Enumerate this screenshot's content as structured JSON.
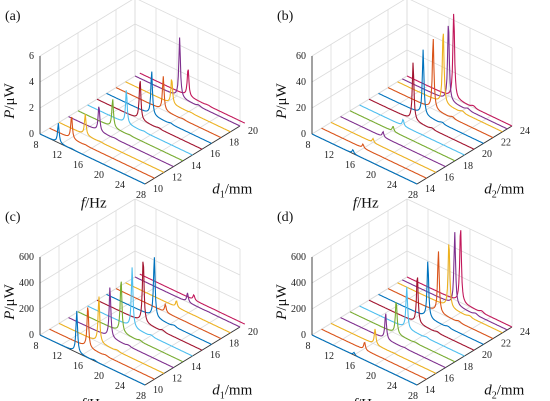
{
  "figure": {
    "panels": [
      "(a)",
      "(b)",
      "(c)",
      "(d)"
    ]
  },
  "colors": [
    "#0072bd",
    "#d95319",
    "#edb120",
    "#7e2f8e",
    "#77ac30",
    "#4dbeee",
    "#a2142f",
    "#0072bd",
    "#d95319",
    "#edb120",
    "#7e2f8e",
    "#c2185b"
  ],
  "chart_data": [
    {
      "label": "(a)",
      "type": "line",
      "xlabel": "f/Hz",
      "ylabel_var": "d",
      "ylabel_sub": "1",
      "ylabel_unit": "/mm",
      "zlabel_var": "P",
      "zlabel_unit": "/μW",
      "xticks": [
        "8",
        "12",
        "16",
        "20",
        "24",
        "28"
      ],
      "yticks": [
        "10",
        "12",
        "14",
        "16",
        "18",
        "20"
      ],
      "zticks": [
        "0",
        "2",
        "4",
        "6"
      ],
      "xlim": [
        8,
        28
      ],
      "ylim": [
        10,
        20
      ],
      "zlim": [
        0,
        6
      ],
      "series": [
        {
          "d": 10,
          "peak_f": 11.5,
          "peak_P": 1.5
        },
        {
          "d": 11,
          "peak_f": 12.2,
          "peak_P": 1.8
        },
        {
          "d": 12,
          "peak_f": 13.0,
          "peak_P": 1.6
        },
        {
          "d": 13,
          "peak_f": 13.8,
          "peak_P": 2.0
        },
        {
          "d": 14,
          "peak_f": 14.6,
          "peak_P": 2.2
        },
        {
          "d": 15,
          "peak_f": 15.4,
          "peak_P": 2.6
        },
        {
          "d": 16,
          "peak_f": 16.2,
          "peak_P": 3.2
        },
        {
          "d": 17,
          "peak_f": 16.6,
          "peak_P": 3.4
        },
        {
          "d": 18,
          "peak_f": 17.0,
          "peak_P": 2.6
        },
        {
          "d": 19,
          "peak_f": 16.8,
          "peak_P": 2.0
        },
        {
          "d": 20,
          "peak_f": 16.5,
          "peak_P": 4.6
        },
        {
          "d": 20.5,
          "peak_f": 17.2,
          "peak_P": 2.2
        }
      ]
    },
    {
      "label": "(b)",
      "type": "line",
      "xlabel": "f/Hz",
      "ylabel_var": "d",
      "ylabel_sub": "2",
      "ylabel_unit": "/mm",
      "zlabel_var": "P",
      "zlabel_unit": "/μW",
      "xticks": [
        "8",
        "12",
        "16",
        "20",
        "24",
        "28"
      ],
      "yticks": [
        "14",
        "16",
        "18",
        "20",
        "22",
        "24"
      ],
      "zticks": [
        "0",
        "20",
        "40",
        "60"
      ],
      "xlim": [
        8,
        28
      ],
      "ylim": [
        14,
        24
      ],
      "zlim": [
        0,
        60
      ],
      "series": [
        {
          "d": 14,
          "peak_f": 15.8,
          "peak_P": 3
        },
        {
          "d": 15,
          "peak_f": 15.9,
          "peak_P": 3
        },
        {
          "d": 16,
          "peak_f": 16.0,
          "peak_P": 3
        },
        {
          "d": 17,
          "peak_f": 16.1,
          "peak_P": 4
        },
        {
          "d": 18,
          "peak_f": 16.2,
          "peak_P": 4
        },
        {
          "d": 19,
          "peak_f": 16.3,
          "peak_P": 5
        },
        {
          "d": 20,
          "peak_f": 16.4,
          "peak_P": 45
        },
        {
          "d": 21,
          "peak_f": 16.5,
          "peak_P": 50
        },
        {
          "d": 22,
          "peak_f": 16.6,
          "peak_P": 55
        },
        {
          "d": 23,
          "peak_f": 16.7,
          "peak_P": 58
        },
        {
          "d": 23.5,
          "peak_f": 16.8,
          "peak_P": 62
        },
        {
          "d": 24,
          "peak_f": 16.9,
          "peak_P": 68
        }
      ]
    },
    {
      "label": "(c)",
      "type": "line",
      "xlabel": "f/Hz",
      "ylabel_var": "d",
      "ylabel_sub": "1",
      "ylabel_unit": "/mm",
      "zlabel_var": "P",
      "zlabel_unit": "/μW",
      "xticks": [
        "8",
        "12",
        "16",
        "20",
        "24",
        "28"
      ],
      "yticks": [
        "10",
        "12",
        "14",
        "16",
        "18",
        "20"
      ],
      "zticks": [
        "0",
        "200",
        "400",
        "600"
      ],
      "xlim": [
        8,
        28
      ],
      "ylim": [
        10,
        20
      ],
      "zlim": [
        0,
        600
      ],
      "series": [
        {
          "d": 10,
          "peak_f": 15.0,
          "peak_P": 320
        },
        {
          "d": 11,
          "peak_f": 15.3,
          "peak_P": 330
        },
        {
          "d": 12,
          "peak_f": 15.6,
          "peak_P": 360
        },
        {
          "d": 13,
          "peak_f": 15.9,
          "peak_P": 390
        },
        {
          "d": 14,
          "peak_f": 16.2,
          "peak_P": 420
        },
        {
          "d": 15,
          "peak_f": 16.5,
          "peak_P": 460
        },
        {
          "d": 16,
          "peak_f": 16.8,
          "peak_P": 500
        },
        {
          "d": 17,
          "peak_f": 17.1,
          "peak_P": 470
        },
        {
          "d": 18,
          "peak_f": 17.4,
          "peak_P": 60
        },
        {
          "d": 19,
          "peak_f": 17.7,
          "peak_P": 50
        },
        {
          "d": 20,
          "peak_f": 18.0,
          "peak_P": 70
        },
        {
          "d": 20.5,
          "peak_f": 18.3,
          "peak_P": 40
        }
      ]
    },
    {
      "label": "(d)",
      "type": "line",
      "xlabel": "f/Hz",
      "ylabel_var": "d",
      "ylabel_sub": "2",
      "ylabel_unit": "/mm",
      "zlabel_var": "P",
      "zlabel_unit": "/μW",
      "xticks": [
        "8",
        "12",
        "16",
        "20",
        "24",
        "28"
      ],
      "yticks": [
        "14",
        "16",
        "18",
        "20",
        "22",
        "24"
      ],
      "zticks": [
        "0",
        "200",
        "400",
        "600"
      ],
      "xlim": [
        8,
        28
      ],
      "ylim": [
        14,
        24
      ],
      "zlim": [
        0,
        600
      ],
      "series": [
        {
          "d": 14,
          "peak_f": 16.0,
          "peak_P": 20
        },
        {
          "d": 15,
          "peak_f": 16.2,
          "peak_P": 60
        },
        {
          "d": 16,
          "peak_f": 16.4,
          "peak_P": 120
        },
        {
          "d": 17,
          "peak_f": 16.6,
          "peak_P": 200
        },
        {
          "d": 18,
          "peak_f": 16.8,
          "peak_P": 260
        },
        {
          "d": 19,
          "peak_f": 17.0,
          "peak_P": 320
        },
        {
          "d": 20,
          "peak_f": 17.2,
          "peak_P": 380
        },
        {
          "d": 21,
          "peak_f": 17.4,
          "peak_P": 440
        },
        {
          "d": 22,
          "peak_f": 17.6,
          "peak_P": 480
        },
        {
          "d": 23,
          "peak_f": 17.8,
          "peak_P": 520
        },
        {
          "d": 23.5,
          "peak_f": 18.0,
          "peak_P": 560
        },
        {
          "d": 24,
          "peak_f": 18.2,
          "peak_P": 600
        }
      ]
    }
  ]
}
